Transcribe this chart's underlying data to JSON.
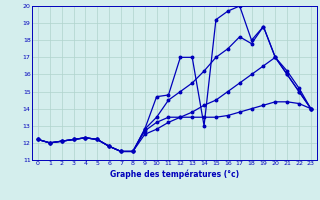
{
  "title": "Graphe des températures (°c)",
  "bg_color": "#d4eeed",
  "line_color": "#0000bb",
  "grid_color": "#b0d4cc",
  "ylim": [
    11,
    20
  ],
  "xlim": [
    -0.5,
    23.5
  ],
  "yticks": [
    11,
    12,
    13,
    14,
    15,
    16,
    17,
    18,
    19,
    20
  ],
  "xticks": [
    0,
    1,
    2,
    3,
    4,
    5,
    6,
    7,
    8,
    9,
    10,
    11,
    12,
    13,
    14,
    15,
    16,
    17,
    18,
    19,
    20,
    21,
    22,
    23
  ],
  "series": [
    [
      12.2,
      12.0,
      12.1,
      12.2,
      12.3,
      12.2,
      11.8,
      11.5,
      11.5,
      12.8,
      14.7,
      14.8,
      17.0,
      17.0,
      13.0,
      19.2,
      19.7,
      20.0,
      18.0,
      18.8,
      17.0,
      16.0,
      15.0,
      14.0
    ],
    [
      12.2,
      12.0,
      12.1,
      12.2,
      12.3,
      12.2,
      11.8,
      11.5,
      11.5,
      12.8,
      13.5,
      14.5,
      15.0,
      15.5,
      16.2,
      17.0,
      17.5,
      18.2,
      17.8,
      18.8,
      17.0,
      16.2,
      15.2,
      14.0
    ],
    [
      12.2,
      12.0,
      12.1,
      12.2,
      12.3,
      12.2,
      11.8,
      11.5,
      11.5,
      12.5,
      12.8,
      13.2,
      13.5,
      13.5,
      13.5,
      13.5,
      13.6,
      13.8,
      14.0,
      14.2,
      14.4,
      14.4,
      14.3,
      14.0
    ],
    [
      12.2,
      12.0,
      12.1,
      12.2,
      12.3,
      12.2,
      11.8,
      11.5,
      11.5,
      12.7,
      13.2,
      13.5,
      13.5,
      13.8,
      14.2,
      14.5,
      15.0,
      15.5,
      16.0,
      16.5,
      17.0,
      16.0,
      15.0,
      14.0
    ]
  ]
}
